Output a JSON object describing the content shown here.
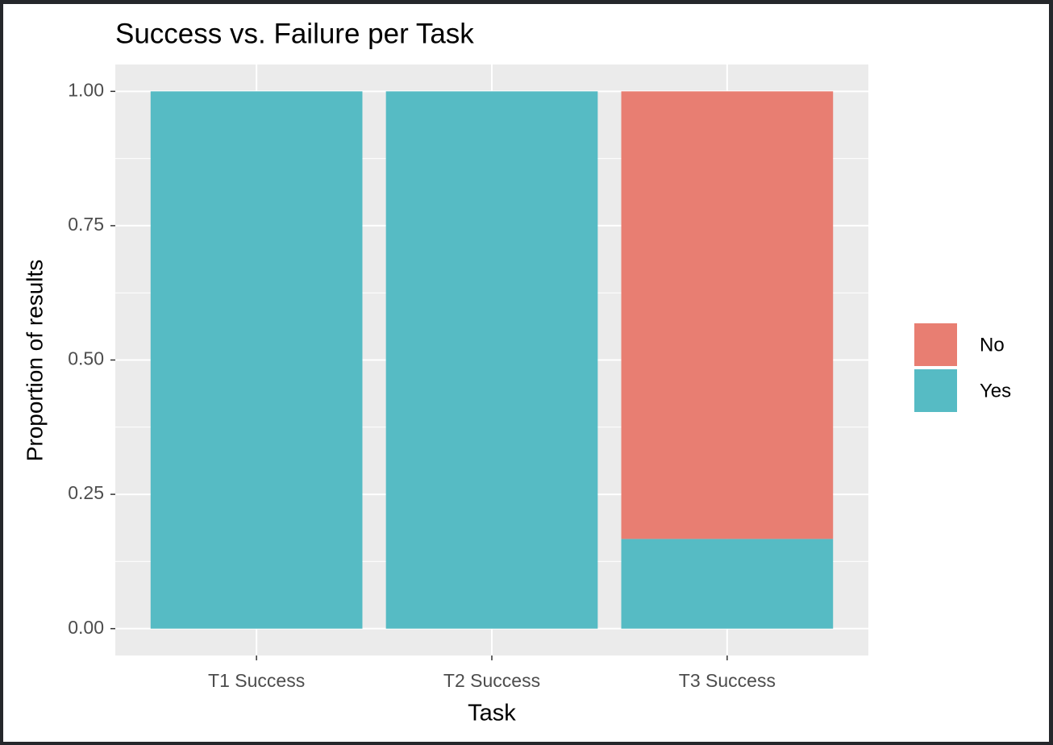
{
  "chart_data": {
    "type": "bar",
    "stacked": true,
    "title": "Success vs. Failure per Task",
    "x_label": "Task",
    "y_label": "Proportion of results",
    "categories": [
      "T1 Success",
      "T2 Success",
      "T3 Success"
    ],
    "series": [
      {
        "name": "No",
        "color": "#e87e72",
        "values": [
          0,
          0,
          0.833
        ]
      },
      {
        "name": "Yes",
        "color": "#56bbc4",
        "values": [
          1,
          1,
          0.167
        ]
      }
    ],
    "ylim": [
      -0.05,
      1.05
    ],
    "yticks": [
      {
        "value": 0,
        "label": "0.00"
      },
      {
        "value": 0.25,
        "label": "0.25"
      },
      {
        "value": 0.5,
        "label": "0.50"
      },
      {
        "value": 0.75,
        "label": "0.75"
      },
      {
        "value": 1,
        "label": "1.00"
      }
    ],
    "grid": true,
    "legend": "right"
  }
}
